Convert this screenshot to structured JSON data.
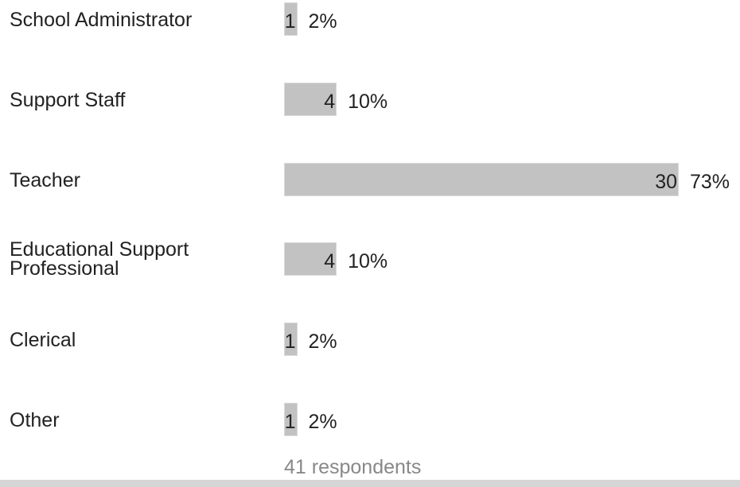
{
  "chart_data": {
    "type": "bar",
    "orientation": "horizontal",
    "categories": [
      "School Administrator",
      "Support Staff",
      "Teacher",
      "Educational Support\nProfessional",
      "Clerical",
      "Other"
    ],
    "values": [
      1,
      4,
      30,
      4,
      1,
      1
    ],
    "percent_labels": [
      "2%",
      "10%",
      "73%",
      "10%",
      "2%",
      "2%"
    ],
    "title": "",
    "xlabel": "",
    "ylabel": "",
    "xlim": [
      0,
      30
    ],
    "grid": false,
    "bar_color": "#c2c2c2"
  },
  "footer": {
    "respondents_label": "41 respondents"
  }
}
